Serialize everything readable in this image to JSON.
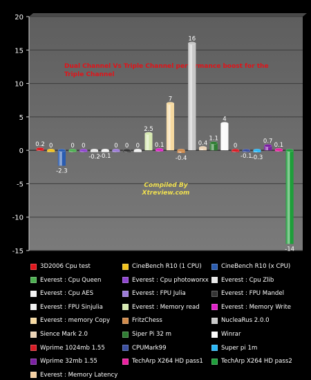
{
  "chart_data": {
    "type": "bar",
    "title": "Dual Channel Vs Triple Channel performance boost for the Triple Channel",
    "watermark": [
      "Compiled By",
      "Xtreview.com"
    ],
    "xlabel": "",
    "ylabel": "",
    "ylim": [
      -15,
      20
    ],
    "yticks": [
      -15,
      -10,
      -5,
      0,
      5,
      10,
      15,
      20
    ],
    "grid": true,
    "legend_position": "bottom",
    "series": [
      {
        "name": "3D2006 Cpu test",
        "value": 0.2,
        "label": "0.2",
        "color": "#e0151b"
      },
      {
        "name": "CineBench R10 (1 CPU)",
        "value": 0,
        "label": "0",
        "color": "#f2c21b"
      },
      {
        "name": "CineBench R10 (x CPU)",
        "value": -2.3,
        "label": "-2.3",
        "color": "#2a5cb0"
      },
      {
        "name": "Everest : Cpu Queen",
        "value": 0,
        "label": "0",
        "color": "#4caf50"
      },
      {
        "name": "Everest : Cpu photoworxx",
        "value": 0,
        "label": "0",
        "color": "#8e44cf"
      },
      {
        "name": "Everest : Cpu  Zlib",
        "value": -0.2,
        "label": "-0.2",
        "color": "#e8e8e8"
      },
      {
        "name": "Everest : Cpu AES",
        "value": -0.1,
        "label": "-0.1",
        "color": "#f4f4f4"
      },
      {
        "name": "Everest : FPU Julia",
        "value": 0,
        "label": "0",
        "color": "#9b7ad8"
      },
      {
        "name": "Everest : FPU Mandel",
        "value": 0,
        "label": "0",
        "color": "#333333"
      },
      {
        "name": "Everest : FPU Sinjulia",
        "value": 0,
        "label": "0",
        "color": "#f0f0f0"
      },
      {
        "name": "Everest : Memory read",
        "value": 2.5,
        "label": "2.5",
        "color": "#d6e9b0"
      },
      {
        "name": "Everest : Memory Write",
        "value": 0.1,
        "label": "0.1",
        "color": "#e020c8"
      },
      {
        "name": "Everest : memory Copy",
        "value": 7,
        "label": "7",
        "color": "#f6d9a0"
      },
      {
        "name": "FritzChess",
        "value": -0.4,
        "label": "-0.4",
        "color": "#d08a4a"
      },
      {
        "name": "NucleaRus 2.0.0",
        "value": 16,
        "label": "16",
        "color": "#c8c8c8"
      },
      {
        "name": "Sience Mark 2.0",
        "value": 0.4,
        "label": "0.4",
        "color": "#ead2b4"
      },
      {
        "name": "Siper Pi 32 m",
        "value": 1.1,
        "label": "1.1",
        "color": "#2e7d32"
      },
      {
        "name": "Winrar",
        "value": 4,
        "label": "4",
        "color": "#fafafa"
      },
      {
        "name": "Wprime 1024mb 1.55",
        "value": 0,
        "label": "0",
        "color": "#d81b24"
      },
      {
        "name": "CPUMark99",
        "value": -0.1,
        "label": "-0.1",
        "color": "#3b4fa0"
      },
      {
        "name": "Super pi 1m",
        "value": -0.3,
        "label": "-0.3",
        "color": "#29b6f6"
      },
      {
        "name": "Wprime 32mb 1.55",
        "value": 0.7,
        "label": "0.7",
        "color": "#7b1fa2"
      },
      {
        "name": "TechArp X264 HD pass1",
        "value": 0.1,
        "label": "0.1",
        "color": "#ec1fa0"
      },
      {
        "name": "TechArp X264 HD pass2",
        "value": -14,
        "label": "-14",
        "color": "#1e9e3a"
      },
      {
        "name": "Everest : Memory Latency",
        "value": null,
        "label": "",
        "color": "#f5cfa0"
      }
    ]
  }
}
